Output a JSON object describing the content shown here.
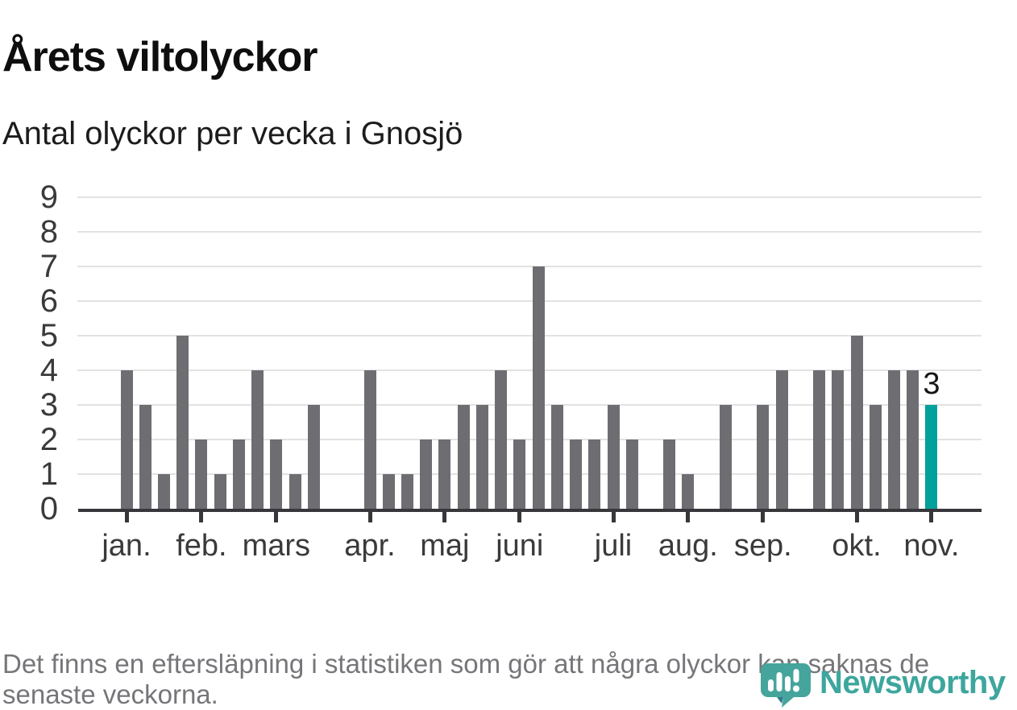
{
  "header": {
    "title": "Årets viltolyckor",
    "subtitle": "Antal olyckor per vecka i Gnosjö"
  },
  "chart_data": {
    "type": "bar",
    "x_unit": "week",
    "title": "Årets viltolyckor",
    "subtitle": "Antal olyckor per vecka i Gnosjö",
    "values": [
      4,
      3,
      1,
      5,
      2,
      1,
      2,
      4,
      2,
      1,
      3,
      0,
      0,
      4,
      1,
      1,
      2,
      2,
      3,
      3,
      4,
      2,
      7,
      3,
      2,
      2,
      3,
      2,
      0,
      2,
      1,
      0,
      3,
      0,
      3,
      4,
      0,
      4,
      4,
      5,
      3,
      4,
      4,
      3
    ],
    "month_ticks": [
      {
        "label": "jan.",
        "week": 0
      },
      {
        "label": "feb.",
        "week": 4
      },
      {
        "label": "mars",
        "week": 8
      },
      {
        "label": "apr.",
        "week": 13
      },
      {
        "label": "maj",
        "week": 17
      },
      {
        "label": "juni",
        "week": 21
      },
      {
        "label": "juli",
        "week": 26
      },
      {
        "label": "aug.",
        "week": 30
      },
      {
        "label": "sep.",
        "week": 34
      },
      {
        "label": "okt.",
        "week": 39
      },
      {
        "label": "nov.",
        "week": 43
      }
    ],
    "yticks": [
      0,
      1,
      2,
      3,
      4,
      5,
      6,
      7,
      8,
      9
    ],
    "ylim": [
      0,
      9
    ],
    "grid": true,
    "legend": "none",
    "highlight_last_bar": true,
    "last_bar_label": "3",
    "colors": {
      "bar": "#6e6d72",
      "highlight": "#00a19c",
      "axis": "#37373b",
      "gridline": "#e2e2e2"
    }
  },
  "footer": {
    "note": "Det finns en eftersläpning i statistiken som gör att några olyckor kan saknas de senaste veckorna.",
    "brand": "Newsworthy",
    "brand_color": "#3da69d",
    "logo_icon_color": "#45a59c",
    "logo_icon_accent_color": "#2e7a90"
  }
}
